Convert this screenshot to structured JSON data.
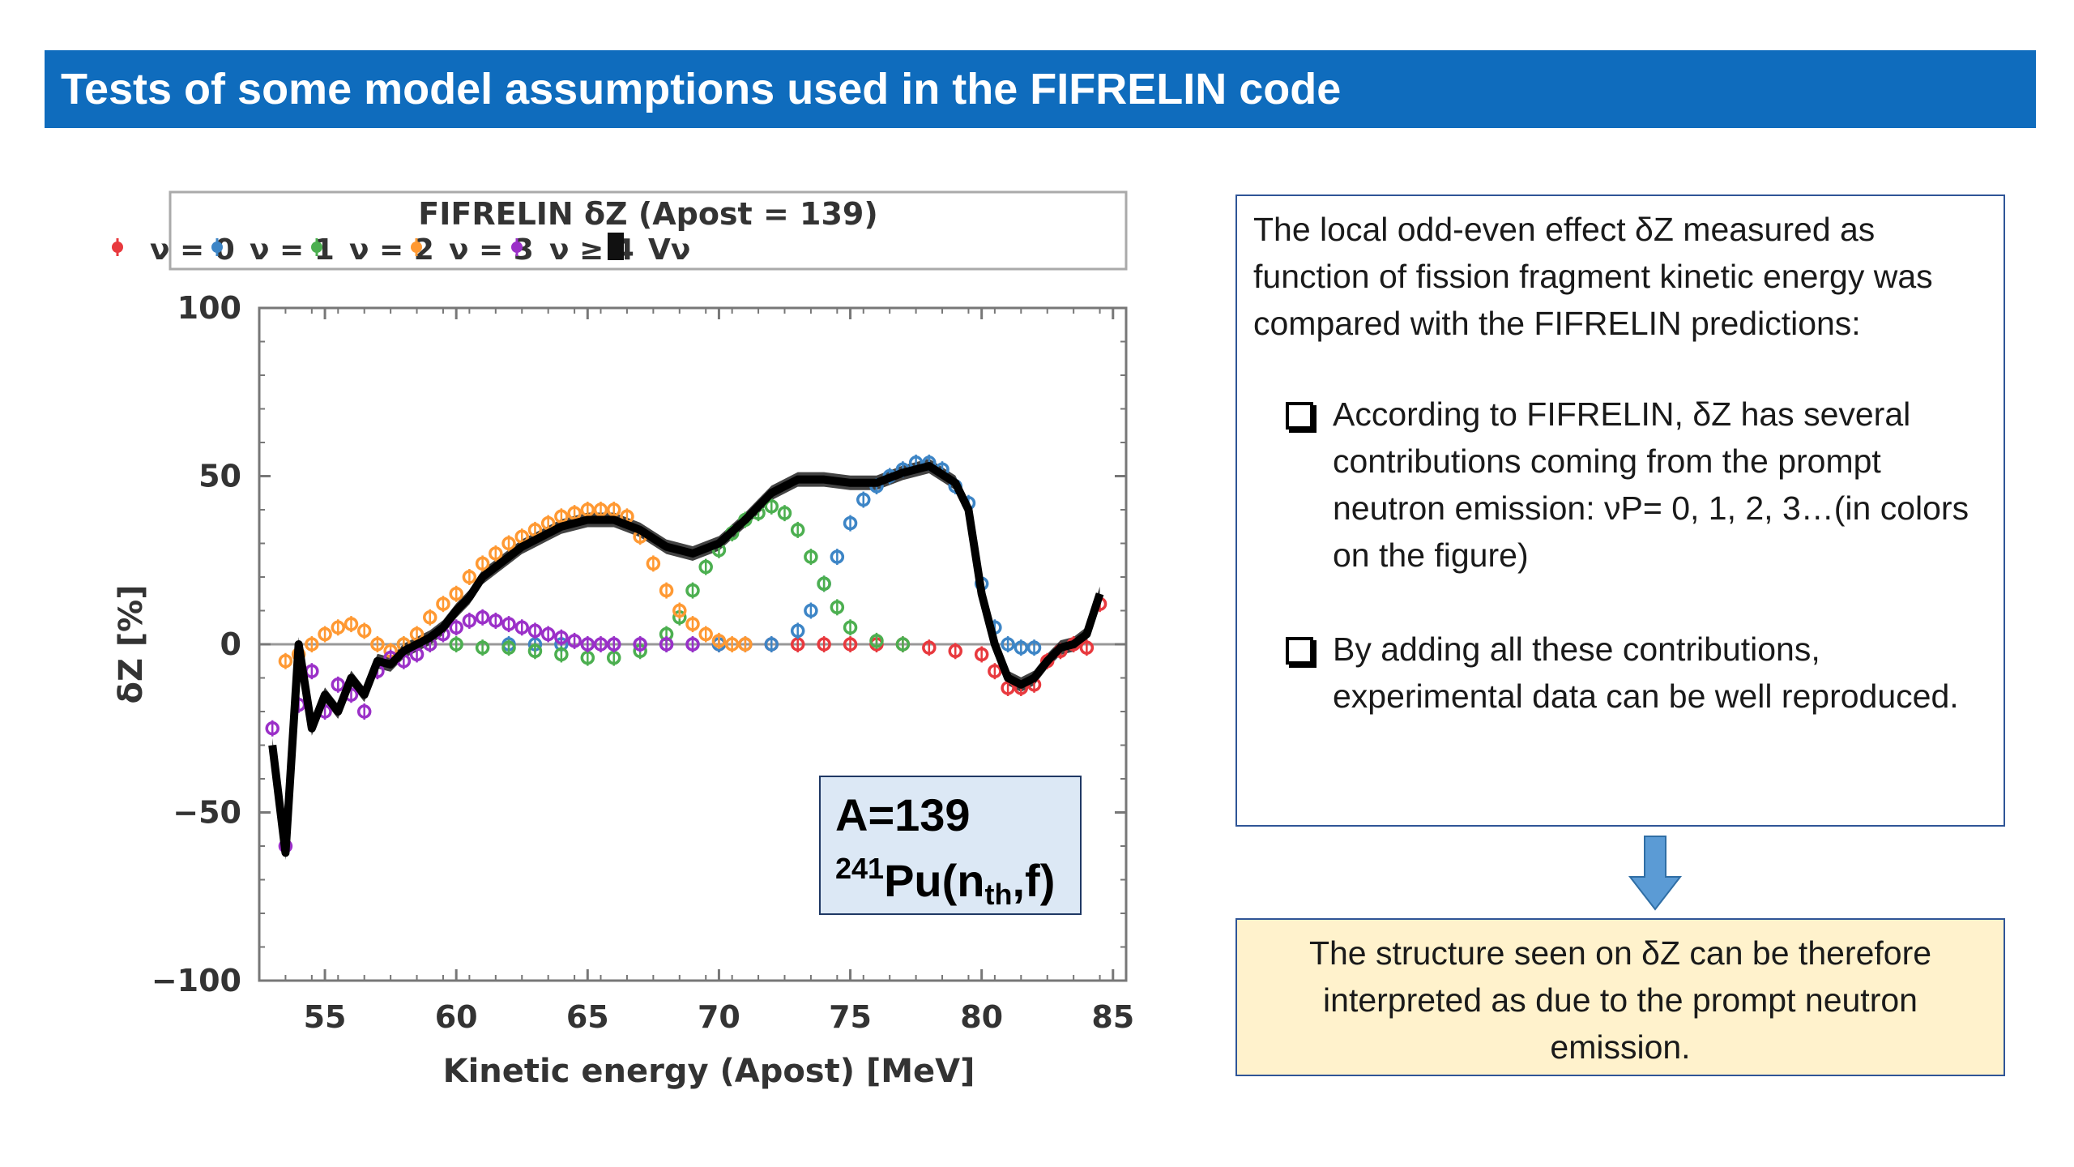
{
  "slide": {
    "title": "Tests of some model assumptions used in the FIFRELIN code",
    "title_bg_color": "#0f6cbd"
  },
  "annotation": {
    "mass": "A=139",
    "mass_number": "241",
    "element": "Pu(n",
    "sub": "th",
    "tail": ",f)"
  },
  "text_box": {
    "intro": "The local odd-even effect δZ measured as function of fission fragment kinetic energy was compared with the FIFRELIN predictions:",
    "bullets": [
      "According to FIFRELIN, δZ has several contributions coming from the prompt neutron emission: νP= 0, 1, 2, 3…(in colors on the figure)",
      "By adding all these contributions, experimental data can be well reproduced."
    ],
    "bullet_icon": "hollow-square-bullet-icon"
  },
  "arrow": {
    "icon": "down-arrow-icon",
    "color": "#5b9bd5"
  },
  "conclusion": {
    "text": "The structure seen on δZ can be therefore interpreted as due to the prompt neutron emission."
  },
  "chart_data": {
    "type": "scatter",
    "title": "FIFRELIN δZ (Apost = 139)",
    "xlabel": "Kinetic energy (Apost) [MeV]",
    "ylabel": "δZ [%]",
    "xlim": [
      52.5,
      85.5
    ],
    "ylim": [
      -100,
      100
    ],
    "xticks": [
      55,
      60,
      65,
      70,
      75,
      80,
      85
    ],
    "yticks": [
      -100,
      -50,
      0,
      50,
      100
    ],
    "x_tick_labels": [
      "55",
      "60",
      "65",
      "70",
      "75",
      "80",
      "85"
    ],
    "y_tick_labels": [
      "−100",
      "−50",
      "0",
      "50",
      "100"
    ],
    "legend_position": "top",
    "grid": false,
    "series": [
      {
        "name": "ν = 0",
        "color": "#e8393e",
        "x": [
          70,
          71,
          72,
          73,
          74,
          75,
          76,
          77,
          78,
          79,
          80,
          80.5,
          81,
          81.5,
          82,
          82.5,
          83,
          83.5,
          84,
          84.5
        ],
        "y": [
          0,
          0,
          0,
          0,
          0,
          0,
          0,
          0,
          -1,
          -2,
          -3,
          -8,
          -13,
          -13,
          -12,
          -5,
          -2,
          0,
          -1,
          12
        ]
      },
      {
        "name": "ν = 1",
        "color": "#3d85c6",
        "x": [
          62,
          63,
          64,
          65,
          66,
          67,
          68,
          69,
          70,
          71,
          72,
          73,
          73.5,
          74,
          74.5,
          75,
          75.5,
          76,
          76.5,
          77,
          77.5,
          78,
          78.5,
          79,
          79.5,
          80,
          80.5,
          81,
          81.5,
          82
        ],
        "y": [
          0,
          0,
          0,
          0,
          0,
          0,
          0,
          0,
          0,
          0,
          0,
          4,
          10,
          18,
          26,
          36,
          43,
          47,
          50,
          52,
          54,
          54,
          52,
          47,
          42,
          18,
          5,
          0,
          -1,
          -1
        ]
      },
      {
        "name": "ν = 2",
        "color": "#4caf50",
        "x": [
          58,
          59,
          60,
          61,
          62,
          63,
          64,
          65,
          66,
          67,
          68,
          68.5,
          69,
          69.5,
          70,
          70.5,
          71,
          71.5,
          72,
          72.5,
          73,
          73.5,
          74,
          74.5,
          75,
          76,
          77
        ],
        "y": [
          0,
          0,
          0,
          -1,
          -1,
          -2,
          -3,
          -4,
          -4,
          -2,
          3,
          8,
          16,
          23,
          28,
          33,
          37,
          39,
          41,
          39,
          34,
          26,
          18,
          11,
          5,
          1,
          0
        ]
      },
      {
        "name": "ν = 3",
        "color": "#ff9933",
        "x": [
          53.5,
          54,
          54.5,
          55,
          55.5,
          56,
          56.5,
          57,
          57.5,
          58,
          58.5,
          59,
          59.5,
          60,
          60.5,
          61,
          61.5,
          62,
          62.5,
          63,
          63.5,
          64,
          64.5,
          65,
          65.5,
          66,
          66.5,
          67,
          67.5,
          68,
          68.5,
          69,
          69.5,
          70,
          70.5,
          71
        ],
        "y": [
          -5,
          -3,
          0,
          3,
          5,
          6,
          4,
          0,
          -2,
          0,
          3,
          8,
          12,
          15,
          20,
          24,
          27,
          30,
          32,
          34,
          36,
          38,
          39,
          40,
          40,
          40,
          38,
          32,
          24,
          16,
          10,
          6,
          3,
          1,
          0,
          0
        ]
      },
      {
        "name": "ν ≥ 4",
        "color": "#9b30c8",
        "x": [
          53,
          53.5,
          54,
          54.5,
          55,
          55.5,
          56,
          56.5,
          57,
          57.5,
          58,
          58.5,
          59,
          59.5,
          60,
          60.5,
          61,
          61.5,
          62,
          62.5,
          63,
          63.5,
          64,
          64.5,
          65,
          65.5,
          66,
          67,
          68,
          69
        ],
        "y": [
          -25,
          -60,
          -18,
          -8,
          -20,
          -12,
          -15,
          -20,
          -8,
          -4,
          -5,
          -3,
          0,
          3,
          5,
          7,
          8,
          7,
          6,
          5,
          4,
          3,
          2,
          1,
          0,
          0,
          0,
          0,
          0,
          0
        ]
      },
      {
        "name": "Vν",
        "color": "#111111",
        "x": [
          53,
          53.5,
          54,
          54.5,
          55,
          55.5,
          56,
          56.5,
          57,
          57.5,
          58,
          58.5,
          59,
          59.5,
          60,
          60.5,
          61,
          61.5,
          62,
          62.5,
          63,
          63.5,
          64,
          65,
          66,
          67,
          68,
          69,
          70,
          71,
          72,
          73,
          74,
          75,
          76,
          77,
          78,
          79,
          79.5,
          80,
          80.5,
          81,
          81.5,
          82,
          82.5,
          83,
          83.5,
          84,
          84.5
        ],
        "y": [
          -30,
          -62,
          0,
          -25,
          -15,
          -20,
          -10,
          -15,
          -5,
          -6,
          -2,
          0,
          2,
          5,
          10,
          14,
          20,
          23,
          26,
          29,
          31,
          33,
          35,
          37,
          37,
          34,
          29,
          27,
          30,
          37,
          45,
          49,
          49,
          48,
          48,
          51,
          53,
          48,
          40,
          15,
          0,
          -10,
          -12,
          -10,
          -5,
          -1,
          0,
          3,
          15
        ]
      }
    ]
  }
}
